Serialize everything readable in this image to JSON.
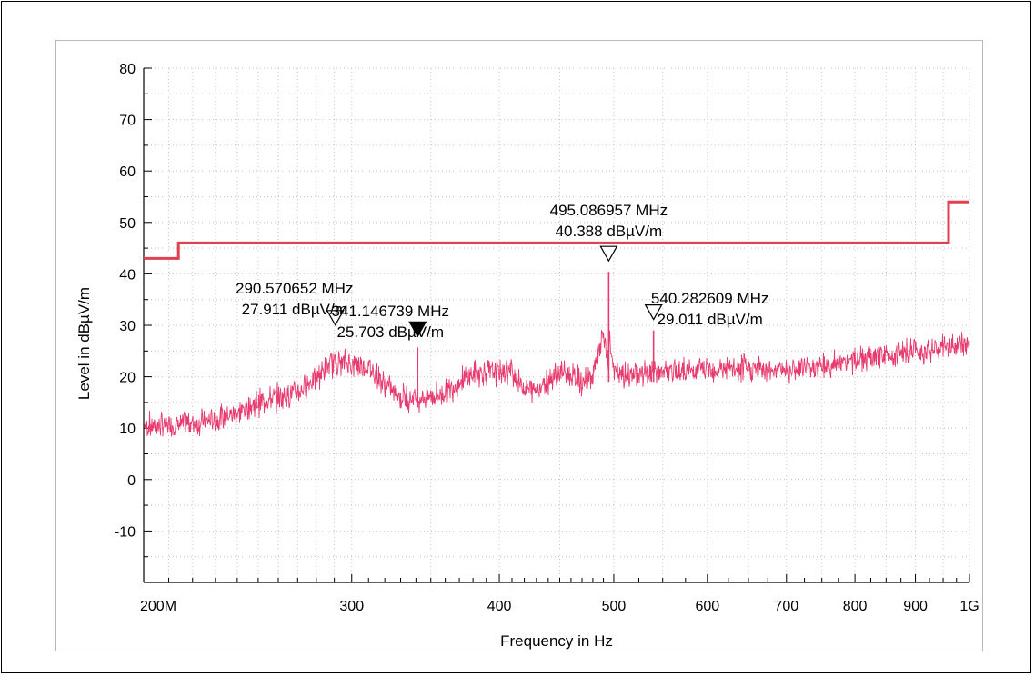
{
  "chart_data": {
    "type": "line",
    "xlabel": "Frequency in Hz",
    "ylabel": "Level in dBµV/m",
    "x_scale": "log",
    "xlim": [
      200,
      1000
    ],
    "ylim": [
      -20,
      80
    ],
    "x_ticks": [
      {
        "value": 200,
        "label": "200M"
      },
      {
        "value": 300,
        "label": "300"
      },
      {
        "value": 400,
        "label": "400"
      },
      {
        "value": 500,
        "label": "500"
      },
      {
        "value": 600,
        "label": "600"
      },
      {
        "value": 700,
        "label": "700"
      },
      {
        "value": 800,
        "label": "800"
      },
      {
        "value": 900,
        "label": "900"
      },
      {
        "value": 1000,
        "label": "1G"
      }
    ],
    "y_ticks": [
      {
        "value": 80,
        "label": "80"
      },
      {
        "value": 70,
        "label": "70"
      },
      {
        "value": 60,
        "label": "60"
      },
      {
        "value": 50,
        "label": "50"
      },
      {
        "value": 40,
        "label": "40"
      },
      {
        "value": 30,
        "label": "30"
      },
      {
        "value": 20,
        "label": "20"
      },
      {
        "value": 10,
        "label": "10"
      },
      {
        "value": 0,
        "label": "0"
      },
      {
        "value": -10,
        "label": "-10"
      }
    ],
    "grid": true,
    "series": [
      {
        "color": "#e83c70",
        "x": [
          200,
          210,
          220,
          230,
          240,
          250,
          260,
          270,
          280,
          290,
          300,
          310,
          320,
          330,
          340,
          341.15,
          350,
          360,
          370,
          380,
          390,
          400,
          410,
          420,
          430,
          440,
          450,
          460,
          470,
          480,
          490,
          495.09,
          500,
          510,
          520,
          530,
          540.28,
          550,
          575,
          600,
          650,
          700,
          750,
          800,
          850,
          900,
          950,
          1000
        ],
        "y": [
          10.5,
          10.5,
          11,
          11.5,
          13,
          15,
          16,
          17,
          20,
          23,
          22.5,
          22,
          18.5,
          16,
          16,
          25.7,
          16,
          17,
          19,
          20.5,
          21,
          21,
          21,
          17.5,
          17.5,
          19.5,
          21,
          20,
          19,
          20,
          28.5,
          40.4,
          21,
          20,
          20.5,
          20.5,
          29.0,
          21,
          21,
          21.5,
          21.5,
          21.5,
          22,
          23,
          24,
          25,
          25.5,
          26.5
        ]
      },
      {
        "color": "#e0404f",
        "x": [
          200,
          214,
          214,
          960,
          960,
          1000
        ],
        "y": [
          43,
          43,
          46,
          46,
          54,
          54
        ]
      }
    ],
    "markers": [
      {
        "freq": 290.570652,
        "level": 27.911,
        "filled": false,
        "label1": "290.570652 MHz",
        "label2": "27.911 dBµV/m"
      },
      {
        "freq": 341.146739,
        "level": 25.703,
        "filled": true,
        "label1": "341.146739 MHz",
        "label2": "25.703 dBµV/m"
      },
      {
        "freq": 495.086957,
        "level": 40.388,
        "filled": false,
        "label1": "495.086957 MHz",
        "label2": "40.388 dBµV/m"
      },
      {
        "freq": 540.282609,
        "level": 29.011,
        "filled": false,
        "label1": "540.282609 MHz",
        "label2": "29.011 dBµV/m"
      }
    ]
  }
}
